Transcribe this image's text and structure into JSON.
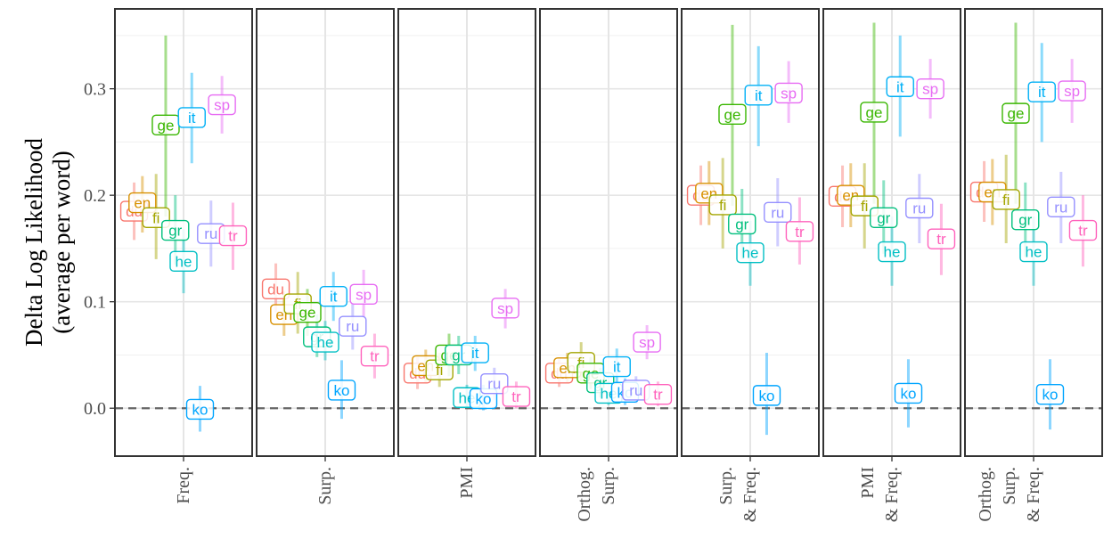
{
  "chart_data": {
    "type": "scatter",
    "title": "",
    "xlabel": "",
    "ylabel": [
      "Delta Log Likelihood",
      "(average  per word)"
    ],
    "ylim": [
      -0.045,
      0.375
    ],
    "yticks": [
      0.0,
      0.1,
      0.2,
      0.3
    ],
    "ytick_labels": [
      "0.0",
      "0.1",
      "0.2",
      "0.3"
    ],
    "reference_line": 0,
    "grid": true,
    "colors": {
      "du": "#F8766D",
      "en": "#D89000",
      "fi": "#A3A500",
      "ge": "#39B600",
      "gr": "#00BF7D",
      "he": "#00BFC4",
      "it": "#00B0F6",
      "ko": "#00A5FF",
      "ru": "#9590FF",
      "sp": "#E76BF3",
      "tr": "#FF62BC"
    },
    "languages": [
      "du",
      "en",
      "fi",
      "ge",
      "gr",
      "he",
      "it",
      "ko",
      "ru",
      "sp",
      "tr"
    ],
    "facets": [
      {
        "label": [
          "Freq."
        ],
        "points": [
          {
            "lang": "du",
            "label": "du",
            "y": 0.185,
            "lo": 0.158,
            "hi": 0.212
          },
          {
            "lang": "en",
            "label": "en",
            "y": 0.193,
            "lo": 0.165,
            "hi": 0.218
          },
          {
            "lang": "fi",
            "label": "fi",
            "y": 0.179,
            "lo": 0.14,
            "hi": 0.22
          },
          {
            "lang": "ge",
            "label": "ge",
            "y": 0.266,
            "lo": 0.18,
            "hi": 0.35
          },
          {
            "lang": "gr",
            "label": "gr",
            "y": 0.167,
            "lo": 0.135,
            "hi": 0.2
          },
          {
            "lang": "he",
            "label": "he",
            "y": 0.138,
            "lo": 0.108,
            "hi": 0.168
          },
          {
            "lang": "it",
            "label": "it",
            "y": 0.273,
            "lo": 0.23,
            "hi": 0.315
          },
          {
            "lang": "ko",
            "label": "ko",
            "y": -0.001,
            "lo": -0.022,
            "hi": 0.021
          },
          {
            "lang": "ru",
            "label": "ru",
            "y": 0.164,
            "lo": 0.133,
            "hi": 0.195
          },
          {
            "lang": "sp",
            "label": "sp",
            "y": 0.285,
            "lo": 0.258,
            "hi": 0.312
          },
          {
            "lang": "tr",
            "label": "tr",
            "y": 0.162,
            "lo": 0.13,
            "hi": 0.193
          }
        ]
      },
      {
        "label": [
          "Surp."
        ],
        "points": [
          {
            "lang": "du",
            "label": "du",
            "y": 0.112,
            "lo": 0.09,
            "hi": 0.136
          },
          {
            "lang": "en",
            "label": "en",
            "y": 0.088,
            "lo": 0.068,
            "hi": 0.11
          },
          {
            "lang": "fi",
            "label": "fi",
            "y": 0.098,
            "lo": 0.07,
            "hi": 0.128
          },
          {
            "lang": "ge",
            "label": "ge",
            "y": 0.09,
            "lo": 0.068,
            "hi": 0.112
          },
          {
            "lang": "gr",
            "label": "gr",
            "y": 0.067,
            "lo": 0.048,
            "hi": 0.088
          },
          {
            "lang": "he",
            "label": "he",
            "y": 0.062,
            "lo": 0.045,
            "hi": 0.082
          },
          {
            "lang": "it",
            "label": "it",
            "y": 0.105,
            "lo": 0.082,
            "hi": 0.128
          },
          {
            "lang": "ko",
            "label": "ko",
            "y": 0.017,
            "lo": -0.01,
            "hi": 0.045
          },
          {
            "lang": "ru",
            "label": "ru",
            "y": 0.077,
            "lo": 0.055,
            "hi": 0.098
          },
          {
            "lang": "sp",
            "label": "sp",
            "y": 0.107,
            "lo": 0.085,
            "hi": 0.13
          },
          {
            "lang": "tr",
            "label": "tr",
            "y": 0.049,
            "lo": 0.028,
            "hi": 0.07
          }
        ]
      },
      {
        "label": [
          "PMI"
        ],
        "points": [
          {
            "lang": "du",
            "label": "du",
            "y": 0.033,
            "lo": 0.018,
            "hi": 0.048
          },
          {
            "lang": "en",
            "label": "en",
            "y": 0.04,
            "lo": 0.024,
            "hi": 0.055
          },
          {
            "lang": "fi",
            "label": "fi",
            "y": 0.036,
            "lo": 0.02,
            "hi": 0.052
          },
          {
            "lang": "ge",
            "label": "ge",
            "y": 0.05,
            "lo": 0.03,
            "hi": 0.07
          },
          {
            "lang": "gr",
            "label": "gr",
            "y": 0.05,
            "lo": 0.032,
            "hi": 0.068
          },
          {
            "lang": "he",
            "label": "he",
            "y": 0.01,
            "lo": 0.0,
            "hi": 0.022
          },
          {
            "lang": "it",
            "label": "it",
            "y": 0.052,
            "lo": 0.035,
            "hi": 0.068
          },
          {
            "lang": "ko",
            "label": "ko",
            "y": 0.009,
            "lo": -0.002,
            "hi": 0.022
          },
          {
            "lang": "ru",
            "label": "ru",
            "y": 0.023,
            "lo": 0.008,
            "hi": 0.038
          },
          {
            "lang": "sp",
            "label": "sp",
            "y": 0.094,
            "lo": 0.075,
            "hi": 0.112
          },
          {
            "lang": "tr",
            "label": "tr",
            "y": 0.011,
            "lo": 0.0,
            "hi": 0.025
          }
        ]
      },
      {
        "label": [
          "Orthog.",
          "Surp."
        ],
        "points": [
          {
            "lang": "du",
            "label": "du",
            "y": 0.033,
            "lo": 0.02,
            "hi": 0.046
          },
          {
            "lang": "en",
            "label": "en",
            "y": 0.038,
            "lo": 0.024,
            "hi": 0.052
          },
          {
            "lang": "fi",
            "label": "fi",
            "y": 0.043,
            "lo": 0.025,
            "hi": 0.062
          },
          {
            "lang": "ge",
            "label": "ge",
            "y": 0.033,
            "lo": 0.018,
            "hi": 0.048
          },
          {
            "lang": "gr",
            "label": "gr",
            "y": 0.024,
            "lo": 0.01,
            "hi": 0.038
          },
          {
            "lang": "he",
            "label": "he",
            "y": 0.014,
            "lo": 0.003,
            "hi": 0.026
          },
          {
            "lang": "it",
            "label": "it",
            "y": 0.039,
            "lo": 0.022,
            "hi": 0.056
          },
          {
            "lang": "ko",
            "label": "ko",
            "y": 0.015,
            "lo": 0.003,
            "hi": 0.028
          },
          {
            "lang": "ru",
            "label": "ru",
            "y": 0.017,
            "lo": 0.005,
            "hi": 0.03
          },
          {
            "lang": "sp",
            "label": "sp",
            "y": 0.062,
            "lo": 0.046,
            "hi": 0.078
          },
          {
            "lang": "tr",
            "label": "tr",
            "y": 0.013,
            "lo": 0.002,
            "hi": 0.025
          }
        ]
      },
      {
        "label": [
          "Surp.",
          "& Freq."
        ],
        "points": [
          {
            "lang": "du",
            "label": "du",
            "y": 0.2,
            "lo": 0.172,
            "hi": 0.228
          },
          {
            "lang": "en",
            "label": "en",
            "y": 0.202,
            "lo": 0.172,
            "hi": 0.232
          },
          {
            "lang": "fi",
            "label": "fi",
            "y": 0.191,
            "lo": 0.15,
            "hi": 0.235
          },
          {
            "lang": "ge",
            "label": "ge",
            "y": 0.276,
            "lo": 0.19,
            "hi": 0.36
          },
          {
            "lang": "gr",
            "label": "gr",
            "y": 0.173,
            "lo": 0.14,
            "hi": 0.206
          },
          {
            "lang": "he",
            "label": "he",
            "y": 0.146,
            "lo": 0.115,
            "hi": 0.176
          },
          {
            "lang": "it",
            "label": "it",
            "y": 0.294,
            "lo": 0.246,
            "hi": 0.34
          },
          {
            "lang": "ko",
            "label": "ko",
            "y": 0.012,
            "lo": -0.025,
            "hi": 0.052
          },
          {
            "lang": "ru",
            "label": "ru",
            "y": 0.184,
            "lo": 0.152,
            "hi": 0.216
          },
          {
            "lang": "sp",
            "label": "sp",
            "y": 0.296,
            "lo": 0.268,
            "hi": 0.326
          },
          {
            "lang": "tr",
            "label": "tr",
            "y": 0.166,
            "lo": 0.135,
            "hi": 0.198
          }
        ]
      },
      {
        "label": [
          "PMI",
          "& Freq."
        ],
        "points": [
          {
            "lang": "du",
            "label": "du",
            "y": 0.199,
            "lo": 0.17,
            "hi": 0.228
          },
          {
            "lang": "en",
            "label": "en",
            "y": 0.2,
            "lo": 0.17,
            "hi": 0.23
          },
          {
            "lang": "fi",
            "label": "fi",
            "y": 0.19,
            "lo": 0.15,
            "hi": 0.23
          },
          {
            "lang": "ge",
            "label": "ge",
            "y": 0.278,
            "lo": 0.192,
            "hi": 0.362
          },
          {
            "lang": "gr",
            "label": "gr",
            "y": 0.179,
            "lo": 0.145,
            "hi": 0.214
          },
          {
            "lang": "he",
            "label": "he",
            "y": 0.147,
            "lo": 0.115,
            "hi": 0.18
          },
          {
            "lang": "it",
            "label": "it",
            "y": 0.302,
            "lo": 0.255,
            "hi": 0.35
          },
          {
            "lang": "ko",
            "label": "ko",
            "y": 0.014,
            "lo": -0.018,
            "hi": 0.046
          },
          {
            "lang": "ru",
            "label": "ru",
            "y": 0.188,
            "lo": 0.155,
            "hi": 0.22
          },
          {
            "lang": "sp",
            "label": "sp",
            "y": 0.3,
            "lo": 0.272,
            "hi": 0.328
          },
          {
            "lang": "tr",
            "label": "tr",
            "y": 0.159,
            "lo": 0.125,
            "hi": 0.192
          }
        ]
      },
      {
        "label": [
          "Orthog.",
          "Surp.",
          "& Freq."
        ],
        "points": [
          {
            "lang": "du",
            "label": "du",
            "y": 0.203,
            "lo": 0.175,
            "hi": 0.232
          },
          {
            "lang": "en",
            "label": "en",
            "y": 0.203,
            "lo": 0.172,
            "hi": 0.234
          },
          {
            "lang": "fi",
            "label": "fi",
            "y": 0.196,
            "lo": 0.155,
            "hi": 0.238
          },
          {
            "lang": "ge",
            "label": "ge",
            "y": 0.277,
            "lo": 0.192,
            "hi": 0.362
          },
          {
            "lang": "gr",
            "label": "gr",
            "y": 0.177,
            "lo": 0.142,
            "hi": 0.212
          },
          {
            "lang": "he",
            "label": "he",
            "y": 0.147,
            "lo": 0.115,
            "hi": 0.18
          },
          {
            "lang": "it",
            "label": "it",
            "y": 0.297,
            "lo": 0.25,
            "hi": 0.343
          },
          {
            "lang": "ko",
            "label": "ko",
            "y": 0.013,
            "lo": -0.02,
            "hi": 0.046
          },
          {
            "lang": "ru",
            "label": "ru",
            "y": 0.189,
            "lo": 0.155,
            "hi": 0.222
          },
          {
            "lang": "sp",
            "label": "sp",
            "y": 0.298,
            "lo": 0.268,
            "hi": 0.328
          },
          {
            "lang": "tr",
            "label": "tr",
            "y": 0.167,
            "lo": 0.133,
            "hi": 0.2
          }
        ]
      }
    ]
  }
}
